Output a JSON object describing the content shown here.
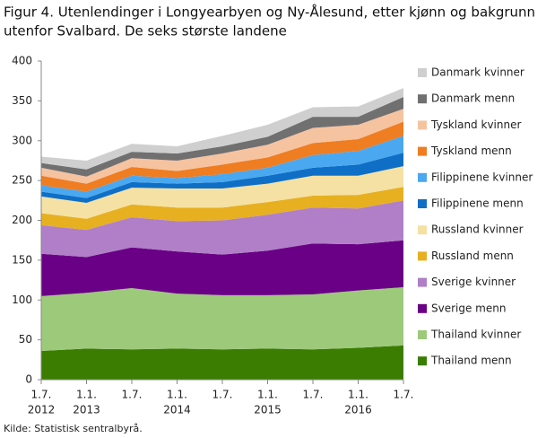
{
  "chart_data": {
    "type": "stacked-area",
    "title": [
      "Figur 4. Utenlendinger i Longyearbyen og Ny-Ålesund, etter kjønn og bakgrunn",
      "utenfor Svalbard. De seks største landene"
    ],
    "source": "Kilde: Statistisk sentralbyrå.",
    "categories": [
      [
        "1.7.",
        "2012"
      ],
      [
        "1.1.",
        "2013"
      ],
      [
        "1.7."
      ],
      [
        "1.1.",
        "2014"
      ],
      [
        "1.7."
      ],
      [
        "1.1.",
        "2015"
      ],
      [
        "1.7."
      ],
      [
        "1.1.",
        "2016"
      ],
      [
        "1.7."
      ]
    ],
    "ylim": [
      0,
      400
    ],
    "yticks": [
      0,
      50,
      100,
      150,
      200,
      250,
      300,
      350,
      400
    ],
    "grid": false,
    "legend": "right",
    "series": [
      {
        "name": "Thailand menn",
        "color": "#3a7d00",
        "values": [
          36,
          39,
          38,
          39,
          38,
          39,
          38,
          40,
          43
        ]
      },
      {
        "name": "Thailand kvinner",
        "color": "#9dc97b",
        "values": [
          69,
          70,
          77,
          69,
          68,
          67,
          69,
          72,
          73
        ]
      },
      {
        "name": "Sverige menn",
        "color": "#6a0085",
        "values": [
          53,
          45,
          51,
          53,
          51,
          56,
          64,
          58,
          59
        ]
      },
      {
        "name": "Sverige kvinner",
        "color": "#b07fc8",
        "values": [
          36,
          34,
          38,
          38,
          43,
          45,
          45,
          45,
          50
        ]
      },
      {
        "name": "Russland menn",
        "color": "#e6b021",
        "values": [
          15,
          14,
          16,
          17,
          16,
          16,
          15,
          17,
          17
        ]
      },
      {
        "name": "Russland kvinner",
        "color": "#f5e1a3",
        "values": [
          21,
          20,
          21,
          24,
          24,
          23,
          25,
          24,
          26
        ]
      },
      {
        "name": "Filippinene menn",
        "color": "#0f6fc6",
        "values": [
          6,
          6,
          7,
          6,
          8,
          10,
          10,
          14,
          17
        ]
      },
      {
        "name": "Filippinene kvinner",
        "color": "#4aa8f0",
        "values": [
          8,
          8,
          8,
          7,
          10,
          10,
          16,
          17,
          21
        ]
      },
      {
        "name": "Tyskland menn",
        "color": "#ef7d22",
        "values": [
          12,
          10,
          11,
          9,
          12,
          13,
          15,
          15,
          18
        ]
      },
      {
        "name": "Tyskland kvinner",
        "color": "#f6c3a0",
        "values": [
          10,
          9,
          11,
          13,
          14,
          16,
          19,
          18,
          16
        ]
      },
      {
        "name": "Danmark menn",
        "color": "#707070",
        "values": [
          6,
          9,
          8,
          9,
          9,
          10,
          14,
          10,
          15
        ]
      },
      {
        "name": "Danmark kvinner",
        "color": "#cfcfcf",
        "values": [
          8,
          11,
          10,
          9,
          13,
          15,
          12,
          13,
          11
        ]
      }
    ]
  }
}
